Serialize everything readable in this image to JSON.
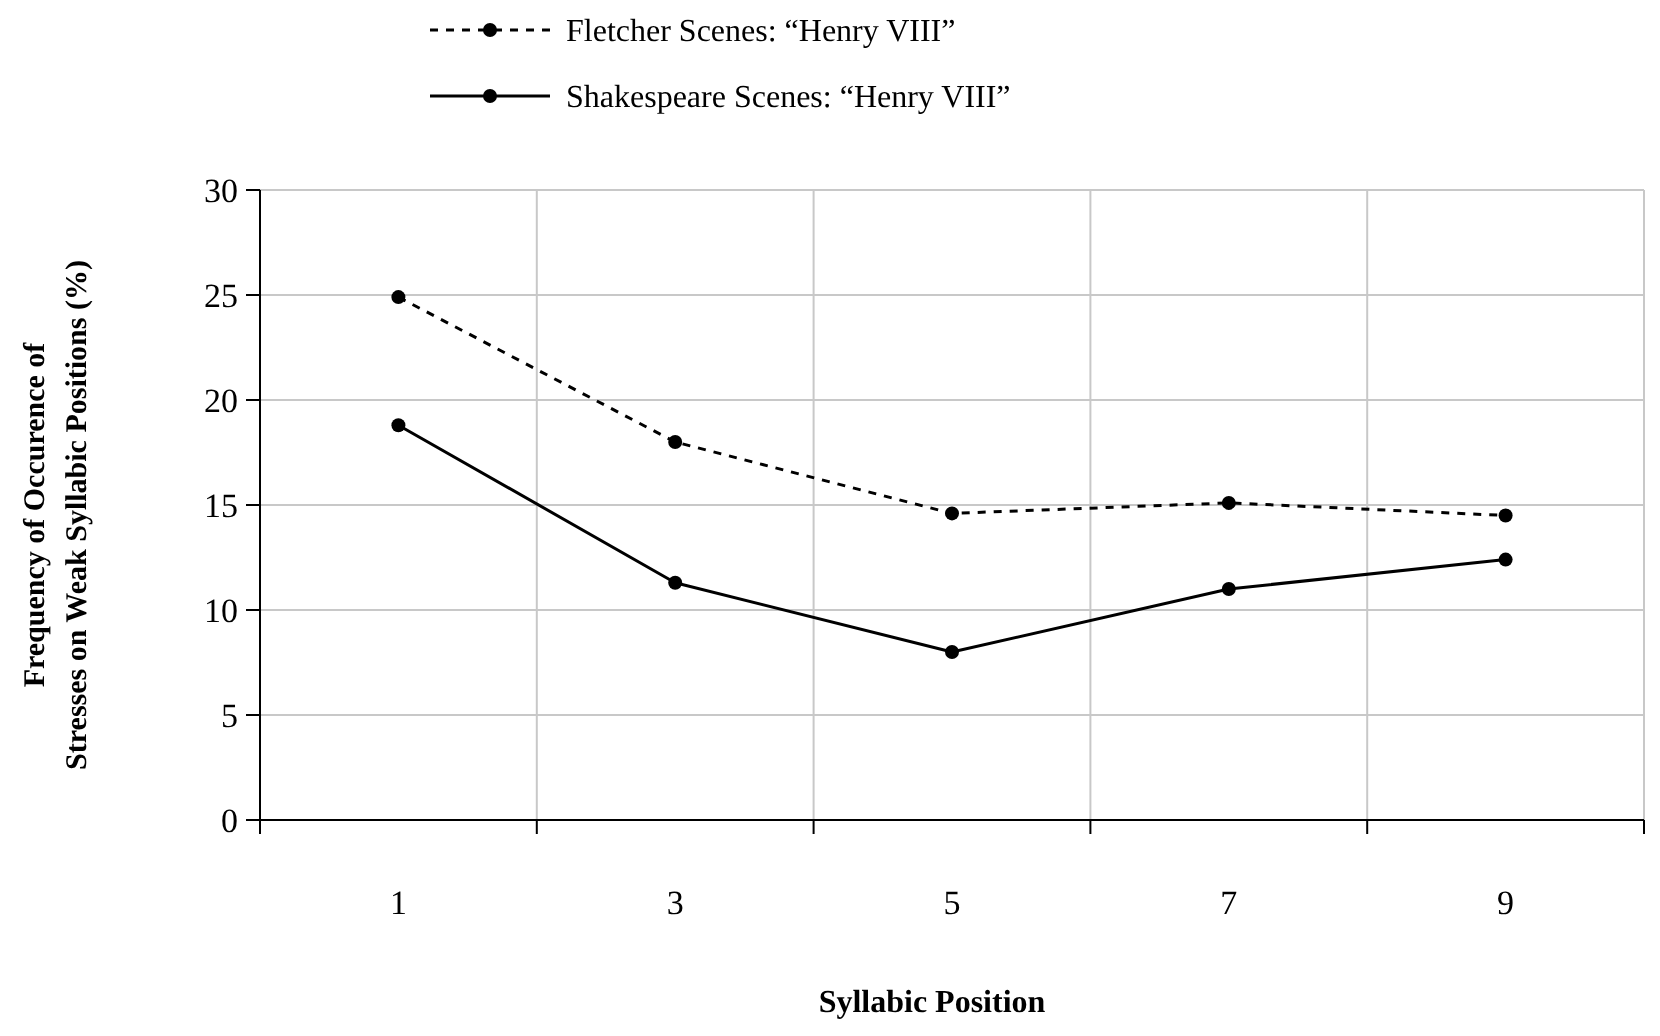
{
  "chart_data": {
    "type": "line",
    "xlabel": "Syllabic Position",
    "ylabel": "Frequency of Occurence of Stresses on Weak Syllabic Positions (%)",
    "categories": [
      "1",
      "3",
      "5",
      "7",
      "9"
    ],
    "ylim": [
      0,
      30
    ],
    "yticks": [
      0,
      5,
      10,
      15,
      20,
      25,
      30
    ],
    "grid": true,
    "legend": "top",
    "marker": "circle",
    "series": [
      {
        "name": "Fletcher Scenes: “Henry VIII”",
        "color": "#000000",
        "line_style": "dashed",
        "values": [
          24.9,
          18,
          14.6,
          15.1,
          14.5
        ]
      },
      {
        "name": "Shakespeare Scenes: “Henry VIII”",
        "color": "#000000",
        "line_style": "solid",
        "values": [
          18.8,
          11.3,
          8,
          11,
          12.4
        ]
      }
    ]
  }
}
